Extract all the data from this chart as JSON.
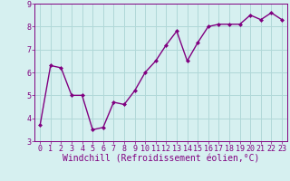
{
  "x": [
    0,
    1,
    2,
    3,
    4,
    5,
    6,
    7,
    8,
    9,
    10,
    11,
    12,
    13,
    14,
    15,
    16,
    17,
    18,
    19,
    20,
    21,
    22,
    23
  ],
  "y": [
    3.7,
    6.3,
    6.2,
    5.0,
    5.0,
    3.5,
    3.6,
    4.7,
    4.6,
    5.2,
    6.0,
    6.5,
    7.2,
    7.8,
    6.5,
    7.3,
    8.0,
    8.1,
    8.1,
    8.1,
    8.5,
    8.3,
    8.6,
    8.3
  ],
  "line_color": "#800080",
  "marker": "D",
  "marker_size": 2,
  "bg_color": "#d6f0f0",
  "grid_color": "#b0d8d8",
  "xlabel": "Windchill (Refroidissement éolien,°C)",
  "ylim": [
    3,
    9
  ],
  "xlim": [
    -0.5,
    23.5
  ],
  "yticks": [
    3,
    4,
    5,
    6,
    7,
    8,
    9
  ],
  "xticks": [
    0,
    1,
    2,
    3,
    4,
    5,
    6,
    7,
    8,
    9,
    10,
    11,
    12,
    13,
    14,
    15,
    16,
    17,
    18,
    19,
    20,
    21,
    22,
    23
  ],
  "tick_fontsize": 6.0,
  "xlabel_fontsize": 7.0,
  "axis_color": "#800080",
  "line_width": 1.0,
  "font_family": "monospace"
}
